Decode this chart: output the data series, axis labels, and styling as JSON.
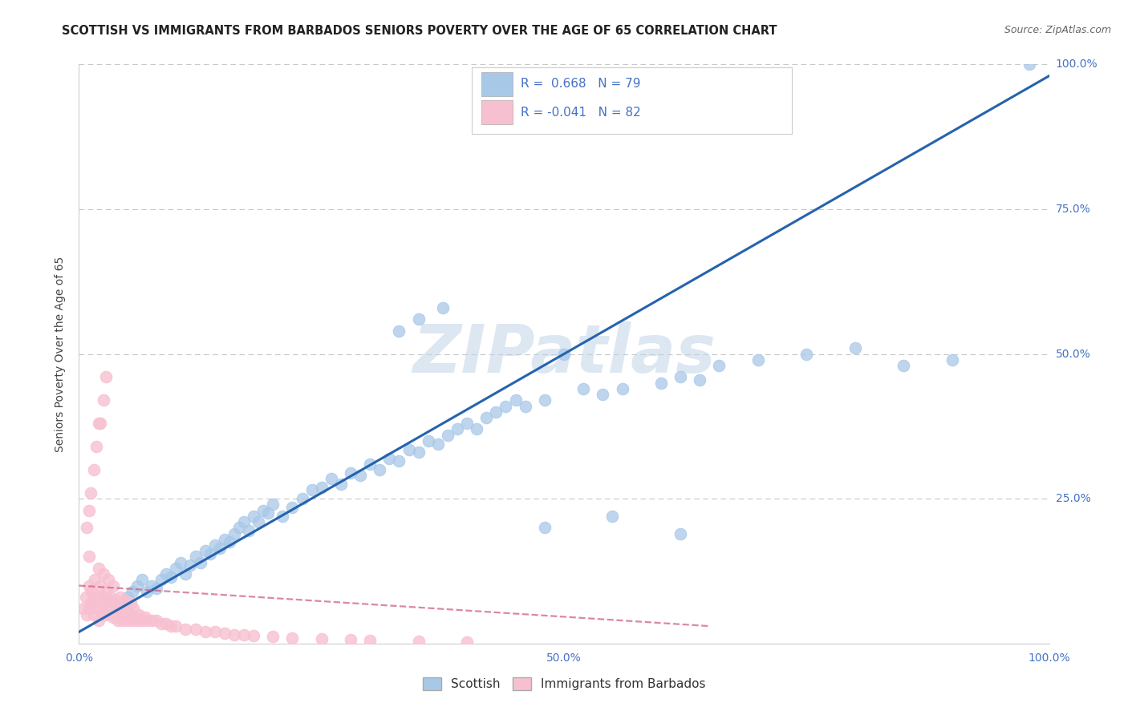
{
  "title": "SCOTTISH VS IMMIGRANTS FROM BARBADOS SENIORS POVERTY OVER THE AGE OF 65 CORRELATION CHART",
  "source_text": "Source: ZipAtlas.com",
  "ylabel": "Seniors Poverty Over the Age of 65",
  "watermark": "ZIPatlas",
  "legend_entries": [
    {
      "label": "Scottish",
      "R": "0.668",
      "N": "79",
      "color": "#a8c8e8",
      "line_color": "#2563ae"
    },
    {
      "label": "Immigrants from Barbados",
      "R": "-0.041",
      "N": "82",
      "color": "#f7c0d0",
      "line_color": "#d06080"
    }
  ],
  "xlim": [
    0.0,
    1.0
  ],
  "ylim": [
    0.0,
    1.0
  ],
  "grid_color": "#c8c8c8",
  "background_color": "#ffffff",
  "title_color": "#222222",
  "axis_color": "#4472c4",
  "ylabel_color": "#444444",
  "scatter_blue_x": [
    0.04,
    0.05,
    0.055,
    0.06,
    0.065,
    0.07,
    0.075,
    0.08,
    0.085,
    0.09,
    0.095,
    0.1,
    0.105,
    0.11,
    0.115,
    0.12,
    0.125,
    0.13,
    0.135,
    0.14,
    0.145,
    0.15,
    0.155,
    0.16,
    0.165,
    0.17,
    0.175,
    0.18,
    0.185,
    0.19,
    0.195,
    0.2,
    0.21,
    0.22,
    0.23,
    0.24,
    0.25,
    0.26,
    0.27,
    0.28,
    0.29,
    0.3,
    0.31,
    0.32,
    0.33,
    0.34,
    0.35,
    0.36,
    0.37,
    0.38,
    0.39,
    0.4,
    0.41,
    0.42,
    0.43,
    0.44,
    0.45,
    0.46,
    0.48,
    0.5,
    0.52,
    0.54,
    0.56,
    0.6,
    0.62,
    0.64,
    0.66,
    0.7,
    0.75,
    0.8,
    0.85,
    0.9,
    0.98,
    0.33,
    0.35,
    0.375,
    0.48,
    0.55,
    0.62
  ],
  "scatter_blue_y": [
    0.06,
    0.08,
    0.09,
    0.1,
    0.11,
    0.09,
    0.1,
    0.095,
    0.11,
    0.12,
    0.115,
    0.13,
    0.14,
    0.12,
    0.135,
    0.15,
    0.14,
    0.16,
    0.155,
    0.17,
    0.165,
    0.18,
    0.175,
    0.19,
    0.2,
    0.21,
    0.195,
    0.22,
    0.21,
    0.23,
    0.225,
    0.24,
    0.22,
    0.235,
    0.25,
    0.265,
    0.27,
    0.285,
    0.275,
    0.295,
    0.29,
    0.31,
    0.3,
    0.32,
    0.315,
    0.335,
    0.33,
    0.35,
    0.345,
    0.36,
    0.37,
    0.38,
    0.37,
    0.39,
    0.4,
    0.41,
    0.42,
    0.41,
    0.42,
    0.5,
    0.44,
    0.43,
    0.44,
    0.45,
    0.46,
    0.455,
    0.48,
    0.49,
    0.5,
    0.51,
    0.48,
    0.49,
    1.0,
    0.54,
    0.56,
    0.58,
    0.2,
    0.22,
    0.19
  ],
  "scatter_pink_x": [
    0.005,
    0.007,
    0.008,
    0.01,
    0.01,
    0.01,
    0.012,
    0.013,
    0.015,
    0.015,
    0.016,
    0.018,
    0.02,
    0.02,
    0.02,
    0.022,
    0.022,
    0.025,
    0.025,
    0.025,
    0.027,
    0.028,
    0.03,
    0.03,
    0.03,
    0.032,
    0.033,
    0.035,
    0.035,
    0.035,
    0.037,
    0.038,
    0.04,
    0.04,
    0.042,
    0.043,
    0.045,
    0.045,
    0.047,
    0.048,
    0.05,
    0.05,
    0.052,
    0.053,
    0.055,
    0.056,
    0.058,
    0.06,
    0.062,
    0.065,
    0.068,
    0.07,
    0.075,
    0.08,
    0.085,
    0.09,
    0.095,
    0.1,
    0.11,
    0.12,
    0.13,
    0.14,
    0.15,
    0.16,
    0.17,
    0.18,
    0.2,
    0.22,
    0.25,
    0.28,
    0.3,
    0.35,
    0.4,
    0.008,
    0.01,
    0.012,
    0.015,
    0.018,
    0.02,
    0.022,
    0.025,
    0.028
  ],
  "scatter_pink_y": [
    0.06,
    0.08,
    0.05,
    0.06,
    0.1,
    0.15,
    0.07,
    0.09,
    0.05,
    0.08,
    0.11,
    0.06,
    0.04,
    0.08,
    0.13,
    0.06,
    0.1,
    0.05,
    0.08,
    0.12,
    0.07,
    0.09,
    0.05,
    0.075,
    0.11,
    0.06,
    0.08,
    0.045,
    0.07,
    0.1,
    0.055,
    0.075,
    0.04,
    0.065,
    0.055,
    0.08,
    0.04,
    0.065,
    0.05,
    0.075,
    0.04,
    0.06,
    0.05,
    0.07,
    0.04,
    0.06,
    0.045,
    0.04,
    0.05,
    0.04,
    0.045,
    0.04,
    0.04,
    0.04,
    0.035,
    0.035,
    0.03,
    0.03,
    0.025,
    0.025,
    0.02,
    0.02,
    0.018,
    0.015,
    0.015,
    0.013,
    0.012,
    0.01,
    0.008,
    0.006,
    0.005,
    0.004,
    0.003,
    0.2,
    0.23,
    0.26,
    0.3,
    0.34,
    0.38,
    0.38,
    0.42,
    0.46
  ],
  "blue_line_x": [
    0.0,
    1.0
  ],
  "blue_line_y": [
    0.02,
    0.98
  ],
  "pink_line_x": [
    0.0,
    0.65
  ],
  "pink_line_y": [
    0.1,
    0.03
  ],
  "title_fontsize": 10.5,
  "source_fontsize": 9,
  "ylabel_fontsize": 10,
  "tick_fontsize": 10,
  "legend_fontsize": 11,
  "watermark_fontsize": 60
}
